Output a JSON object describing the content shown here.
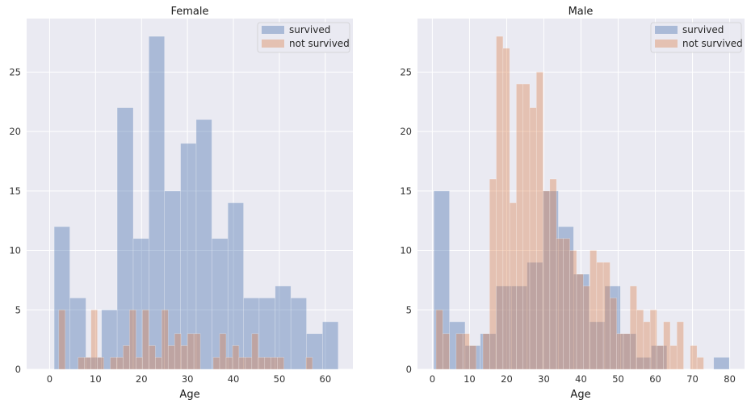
{
  "colors": {
    "background": "#eaeaf2",
    "grid": "#ffffff",
    "survived": "#4c72b0",
    "not_survived": "#dd8452"
  },
  "chart_data": [
    {
      "type": "bar",
      "title": "Female",
      "xlabel": "Age",
      "ylabel": "",
      "xlim": [
        -5,
        66
      ],
      "ylim": [
        0,
        29.5
      ],
      "xticks": [
        0,
        10,
        20,
        30,
        40,
        50,
        60
      ],
      "yticks": [
        0,
        5,
        10,
        15,
        20,
        25
      ],
      "grid": true,
      "legend": "top-right",
      "series": [
        {
          "name": "survived",
          "color": "#4c72b0",
          "opacity": 0.4,
          "bins": [
            {
              "x0": 1,
              "x1": 4.4,
              "value": 12
            },
            {
              "x0": 4.4,
              "x1": 7.9,
              "value": 6
            },
            {
              "x0": 7.9,
              "x1": 11.3,
              "value": 1
            },
            {
              "x0": 11.3,
              "x1": 14.7,
              "value": 5
            },
            {
              "x0": 14.7,
              "x1": 18.2,
              "value": 22
            },
            {
              "x0": 18.2,
              "x1": 21.6,
              "value": 11
            },
            {
              "x0": 21.6,
              "x1": 25.0,
              "value": 28
            },
            {
              "x0": 25.0,
              "x1": 28.5,
              "value": 15
            },
            {
              "x0": 28.5,
              "x1": 31.9,
              "value": 19
            },
            {
              "x0": 31.9,
              "x1": 35.3,
              "value": 21
            },
            {
              "x0": 35.3,
              "x1": 38.8,
              "value": 11
            },
            {
              "x0": 38.8,
              "x1": 42.2,
              "value": 14
            },
            {
              "x0": 42.2,
              "x1": 45.6,
              "value": 6
            },
            {
              "x0": 45.6,
              "x1": 49.1,
              "value": 6
            },
            {
              "x0": 49.1,
              "x1": 52.5,
              "value": 7
            },
            {
              "x0": 52.5,
              "x1": 55.9,
              "value": 6
            },
            {
              "x0": 55.9,
              "x1": 59.4,
              "value": 3
            },
            {
              "x0": 59.4,
              "x1": 62.8,
              "value": 4
            }
          ]
        },
        {
          "name": "not survived",
          "color": "#dd8452",
          "opacity": 0.4,
          "bins": [
            {
              "x0": 2,
              "x1": 3.4,
              "value": 5
            },
            {
              "x0": 3.4,
              "x1": 4.8,
              "value": 0
            },
            {
              "x0": 4.8,
              "x1": 6.2,
              "value": 0
            },
            {
              "x0": 6.2,
              "x1": 7.6,
              "value": 1
            },
            {
              "x0": 7.6,
              "x1": 9.0,
              "value": 1
            },
            {
              "x0": 9.0,
              "x1": 10.4,
              "value": 5
            },
            {
              "x0": 10.4,
              "x1": 11.8,
              "value": 1
            },
            {
              "x0": 11.8,
              "x1": 13.2,
              "value": 0
            },
            {
              "x0": 13.2,
              "x1": 14.6,
              "value": 1
            },
            {
              "x0": 14.6,
              "x1": 16.0,
              "value": 1
            },
            {
              "x0": 16.0,
              "x1": 17.4,
              "value": 2
            },
            {
              "x0": 17.4,
              "x1": 18.8,
              "value": 5
            },
            {
              "x0": 18.8,
              "x1": 20.2,
              "value": 1
            },
            {
              "x0": 20.2,
              "x1": 21.6,
              "value": 5
            },
            {
              "x0": 21.6,
              "x1": 23.0,
              "value": 2
            },
            {
              "x0": 23.0,
              "x1": 24.4,
              "value": 1
            },
            {
              "x0": 24.4,
              "x1": 25.8,
              "value": 5
            },
            {
              "x0": 25.8,
              "x1": 27.2,
              "value": 2
            },
            {
              "x0": 27.2,
              "x1": 28.6,
              "value": 3
            },
            {
              "x0": 28.6,
              "x1": 30.0,
              "value": 2
            },
            {
              "x0": 30.0,
              "x1": 31.4,
              "value": 3
            },
            {
              "x0": 31.4,
              "x1": 32.8,
              "value": 3
            },
            {
              "x0": 32.8,
              "x1": 34.2,
              "value": 0
            },
            {
              "x0": 34.2,
              "x1": 35.6,
              "value": 0
            },
            {
              "x0": 35.6,
              "x1": 37.0,
              "value": 1
            },
            {
              "x0": 37.0,
              "x1": 38.4,
              "value": 3
            },
            {
              "x0": 38.4,
              "x1": 39.8,
              "value": 1
            },
            {
              "x0": 39.8,
              "x1": 41.2,
              "value": 2
            },
            {
              "x0": 41.2,
              "x1": 42.6,
              "value": 1
            },
            {
              "x0": 42.6,
              "x1": 44.0,
              "value": 1
            },
            {
              "x0": 44.0,
              "x1": 45.4,
              "value": 3
            },
            {
              "x0": 45.4,
              "x1": 46.8,
              "value": 1
            },
            {
              "x0": 46.8,
              "x1": 48.2,
              "value": 1
            },
            {
              "x0": 48.2,
              "x1": 49.6,
              "value": 1
            },
            {
              "x0": 49.6,
              "x1": 51.0,
              "value": 1
            },
            {
              "x0": 55.8,
              "x1": 57.2,
              "value": 1
            }
          ]
        }
      ]
    },
    {
      "type": "bar",
      "title": "Male",
      "xlabel": "Age",
      "ylabel": "",
      "xlim": [
        -4,
        84
      ],
      "ylim": [
        0,
        29.5
      ],
      "xticks": [
        0,
        10,
        20,
        30,
        40,
        50,
        60,
        70,
        80
      ],
      "yticks": [
        0,
        5,
        10,
        15,
        20,
        25
      ],
      "grid": true,
      "legend": "top-right",
      "series": [
        {
          "name": "survived",
          "color": "#4c72b0",
          "opacity": 0.4,
          "bins": [
            {
              "x0": 0.4,
              "x1": 4.6,
              "value": 15
            },
            {
              "x0": 4.6,
              "x1": 8.8,
              "value": 4
            },
            {
              "x0": 8.8,
              "x1": 12.9,
              "value": 2
            },
            {
              "x0": 12.9,
              "x1": 17.1,
              "value": 3
            },
            {
              "x0": 17.1,
              "x1": 21.3,
              "value": 7
            },
            {
              "x0": 21.3,
              "x1": 25.5,
              "value": 7
            },
            {
              "x0": 25.5,
              "x1": 29.7,
              "value": 9
            },
            {
              "x0": 29.7,
              "x1": 33.9,
              "value": 15
            },
            {
              "x0": 33.9,
              "x1": 38.0,
              "value": 12
            },
            {
              "x0": 38.0,
              "x1": 42.2,
              "value": 8
            },
            {
              "x0": 42.2,
              "x1": 46.4,
              "value": 4
            },
            {
              "x0": 46.4,
              "x1": 50.6,
              "value": 7
            },
            {
              "x0": 50.6,
              "x1": 54.8,
              "value": 3
            },
            {
              "x0": 54.8,
              "x1": 58.9,
              "value": 1
            },
            {
              "x0": 58.9,
              "x1": 63.1,
              "value": 2
            },
            {
              "x0": 63.1,
              "x1": 67.3,
              "value": 0
            },
            {
              "x0": 67.3,
              "x1": 71.5,
              "value": 0
            },
            {
              "x0": 71.5,
              "x1": 75.7,
              "value": 0
            },
            {
              "x0": 75.7,
              "x1": 79.9,
              "value": 1
            }
          ]
        },
        {
          "name": "not survived",
          "color": "#dd8452",
          "opacity": 0.4,
          "bins": [
            {
              "x0": 1.0,
              "x1": 2.8,
              "value": 5
            },
            {
              "x0": 2.8,
              "x1": 4.6,
              "value": 3
            },
            {
              "x0": 4.6,
              "x1": 6.4,
              "value": 0
            },
            {
              "x0": 6.4,
              "x1": 8.2,
              "value": 3
            },
            {
              "x0": 8.2,
              "x1": 10.0,
              "value": 3
            },
            {
              "x0": 10.0,
              "x1": 11.8,
              "value": 2
            },
            {
              "x0": 11.8,
              "x1": 13.6,
              "value": 0
            },
            {
              "x0": 13.6,
              "x1": 15.4,
              "value": 3
            },
            {
              "x0": 15.4,
              "x1": 17.2,
              "value": 16
            },
            {
              "x0": 17.2,
              "x1": 19.0,
              "value": 28
            },
            {
              "x0": 19.0,
              "x1": 20.8,
              "value": 27
            },
            {
              "x0": 20.8,
              "x1": 22.6,
              "value": 14
            },
            {
              "x0": 22.6,
              "x1": 24.4,
              "value": 24
            },
            {
              "x0": 24.4,
              "x1": 26.2,
              "value": 24
            },
            {
              "x0": 26.2,
              "x1": 28.0,
              "value": 22
            },
            {
              "x0": 28.0,
              "x1": 29.8,
              "value": 25
            },
            {
              "x0": 29.8,
              "x1": 31.6,
              "value": 15
            },
            {
              "x0": 31.6,
              "x1": 33.4,
              "value": 16
            },
            {
              "x0": 33.4,
              "x1": 35.2,
              "value": 11
            },
            {
              "x0": 35.2,
              "x1": 37.0,
              "value": 11
            },
            {
              "x0": 37.0,
              "x1": 38.8,
              "value": 10
            },
            {
              "x0": 38.8,
              "x1": 40.6,
              "value": 8
            },
            {
              "x0": 40.6,
              "x1": 42.4,
              "value": 7
            },
            {
              "x0": 42.4,
              "x1": 44.2,
              "value": 10
            },
            {
              "x0": 44.2,
              "x1": 46.0,
              "value": 9
            },
            {
              "x0": 46.0,
              "x1": 47.8,
              "value": 9
            },
            {
              "x0": 47.8,
              "x1": 49.6,
              "value": 6
            },
            {
              "x0": 49.6,
              "x1": 51.4,
              "value": 3
            },
            {
              "x0": 51.4,
              "x1": 53.2,
              "value": 3
            },
            {
              "x0": 53.2,
              "x1": 55.0,
              "value": 7
            },
            {
              "x0": 55.0,
              "x1": 56.8,
              "value": 5
            },
            {
              "x0": 56.8,
              "x1": 58.6,
              "value": 4
            },
            {
              "x0": 58.6,
              "x1": 60.4,
              "value": 5
            },
            {
              "x0": 60.4,
              "x1": 62.2,
              "value": 2
            },
            {
              "x0": 62.2,
              "x1": 64.0,
              "value": 4
            },
            {
              "x0": 64.0,
              "x1": 65.8,
              "value": 2
            },
            {
              "x0": 65.8,
              "x1": 67.6,
              "value": 4
            },
            {
              "x0": 67.6,
              "x1": 69.4,
              "value": 0
            },
            {
              "x0": 69.4,
              "x1": 71.2,
              "value": 2
            },
            {
              "x0": 71.2,
              "x1": 73.0,
              "value": 1
            }
          ]
        }
      ]
    }
  ]
}
